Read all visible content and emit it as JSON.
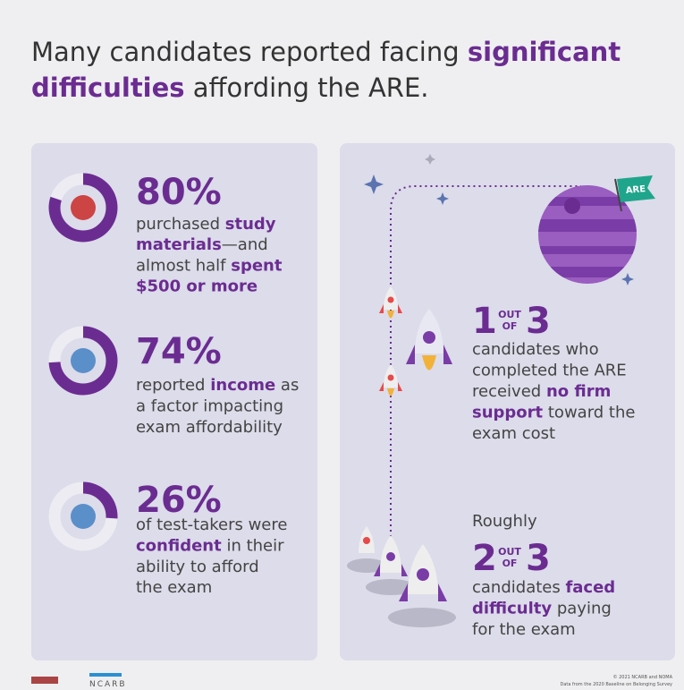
{
  "title": {
    "lines": [
      [
        {
          "text": "Many candidates reported facing "
        },
        {
          "text": "significant",
          "bold": true
        }
      ],
      [
        {
          "text": "difficulties",
          "bold": true
        },
        {
          "text": " affording the ARE."
        }
      ]
    ]
  },
  "stats": [
    {
      "percent": 80,
      "percent_label": "80%",
      "lines": [
        [
          {
            "text": "purchased "
          },
          {
            "text": "study",
            "bold": true
          }
        ],
        [
          {
            "text": "materials",
            "bold": true
          },
          {
            "text": "—and"
          }
        ],
        [
          {
            "text": "almost half "
          },
          {
            "text": "spent",
            "bold": true
          }
        ],
        [
          {
            "text": "$500 or more",
            "bold": true
          }
        ]
      ]
    },
    {
      "percent": 74,
      "percent_label": "74%",
      "lines": [
        [
          {
            "text": "reported "
          },
          {
            "text": "income",
            "bold": true
          },
          {
            "text": " as"
          }
        ],
        [
          {
            "text": "a factor impacting"
          }
        ],
        [
          {
            "text": "exam affordability"
          }
        ]
      ]
    },
    {
      "percent": 26,
      "percent_label": "26%",
      "lines": [
        [
          {
            "text": "of test-takers were"
          }
        ],
        [
          {
            "text": "confident",
            "bold": true
          },
          {
            "text": " in their"
          }
        ],
        [
          {
            "text": "ability to afford"
          }
        ],
        [
          {
            "text": "the exam"
          }
        ]
      ]
    }
  ],
  "ratios": [
    {
      "intro": null,
      "numerator": "1",
      "out": "OUT",
      "of": "OF",
      "denominator": "3",
      "lines": [
        [
          {
            "text": "candidates who"
          }
        ],
        [
          {
            "text": "completed the ARE"
          }
        ],
        [
          {
            "text": "received "
          },
          {
            "text": "no firm",
            "bold": true
          }
        ],
        [
          {
            "text": "support",
            "bold": true
          },
          {
            "text": " toward the"
          }
        ],
        [
          {
            "text": "exam cost"
          }
        ]
      ]
    },
    {
      "intro": "Roughly",
      "numerator": "2",
      "out": "OUT",
      "of": "OF",
      "denominator": "3",
      "lines": [
        [
          {
            "text": "candidates "
          },
          {
            "text": "faced",
            "bold": true
          }
        ],
        [
          {
            "text": "difficulty",
            "bold": true
          },
          {
            "text": " paying"
          }
        ],
        [
          {
            "text": "for the exam"
          }
        ]
      ]
    }
  ],
  "flag": "ARE",
  "footer": {
    "logo": "NCARB",
    "copyright": "© 2021 NCARB and NOMA",
    "source": "Data from the 2020 Baseline on Belonging Survey"
  }
}
